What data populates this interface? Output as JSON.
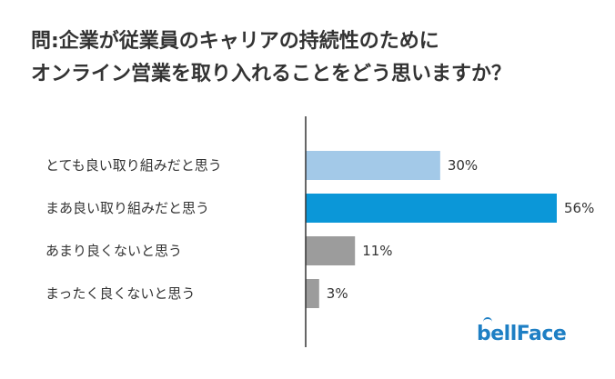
{
  "title_line1": "問:企業が従業員のキャリアの持続性のために",
  "title_line2": "オンライン営業を取り入れることをどう思いますか？",
  "chart_data": {
    "type": "bar",
    "orientation": "horizontal",
    "title": "問:企業が従業員のキャリアの持続性のためにオンライン営業を取り入れることをどう思いますか？",
    "categories": [
      "とても良い取り組みだと思う",
      "まあ良い取り組みだと思う",
      "あまり良くないと思う",
      "まったく良くないと思う"
    ],
    "values": [
      30,
      56,
      11,
      3
    ],
    "value_labels": [
      "30%",
      "56%",
      "11%",
      "3%"
    ],
    "colors": [
      "#a3c9e8",
      "#0b97d8",
      "#9c9c9c",
      "#9c9c9c"
    ],
    "xlim": [
      0,
      60
    ],
    "grid": false,
    "legend": "none"
  },
  "logo_text": "bellFace",
  "colors": {
    "logo": "#1e7fc4",
    "axis": "#333333",
    "text": "#333333"
  }
}
